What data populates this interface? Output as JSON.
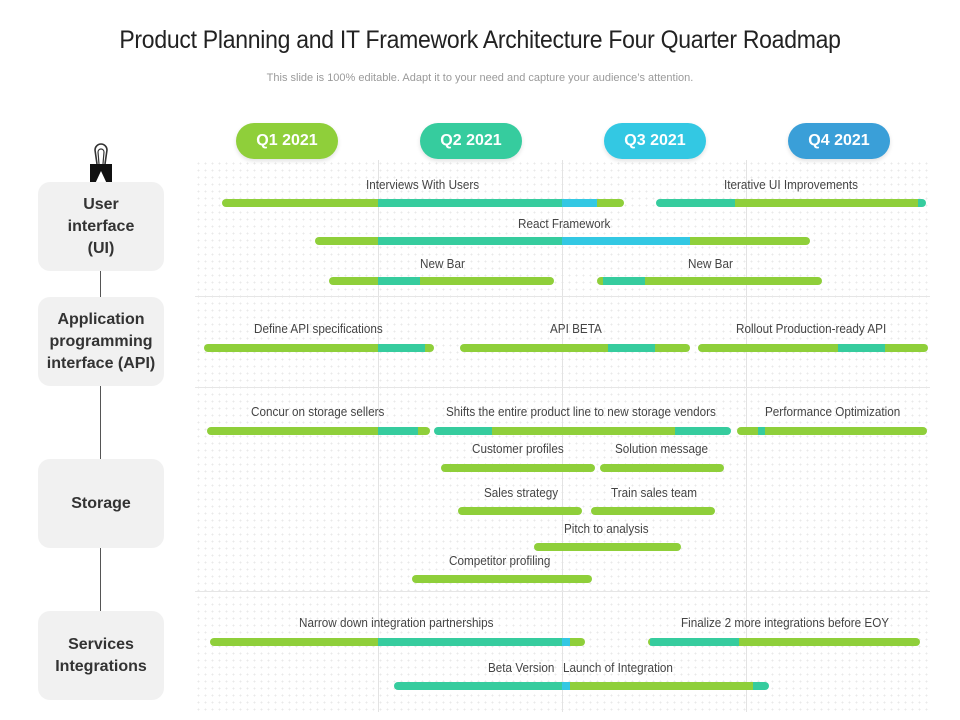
{
  "title": "Product Planning and IT Framework Architecture Four Quarter Roadmap",
  "subtitle": "This slide is 100% editable. Adapt it to your need and capture your audience’s attention.",
  "quarters": [
    {
      "label": "Q1 2021",
      "color": "#8fcf3a"
    },
    {
      "label": "Q2 2021",
      "color": "#36cc9e"
    },
    {
      "label": "Q3 2021",
      "color": "#33c8e3"
    },
    {
      "label": "Q4 2021",
      "color": "#3a9fd8"
    }
  ],
  "categories": [
    {
      "label": "User\ninterface\n(UI)"
    },
    {
      "label": "Application\nprogramming\ninterface (API)"
    },
    {
      "label": "Storage"
    },
    {
      "label": "Services\nIntegrations"
    }
  ],
  "tasks": {
    "ui_interviews": "Interviews With Users",
    "ui_iterative": "Iterative UI Improvements",
    "ui_react": "React Framework",
    "ui_newbar_1": "New Bar",
    "ui_newbar_2": "New Bar",
    "api_define": "Define API specifications",
    "api_beta": "API BETA",
    "api_rollout": "Rollout Production-ready API",
    "st_concur": "Concur on storage sellers",
    "st_shifts": "Shifts the entire product line to new storage vendors",
    "st_perf": "Performance Optimization",
    "st_customer": "Customer profiles",
    "st_solution": "Solution message",
    "st_sales": "Sales strategy",
    "st_train": "Train sales team",
    "st_pitch": "Pitch to analysis",
    "st_competitor": "Competitor profiling",
    "si_narrow": "Narrow down integration partnerships",
    "si_finalize": "Finalize 2 more integrations before EOY",
    "si_beta": "Beta Version",
    "si_launch": "Launch of Integration"
  }
}
